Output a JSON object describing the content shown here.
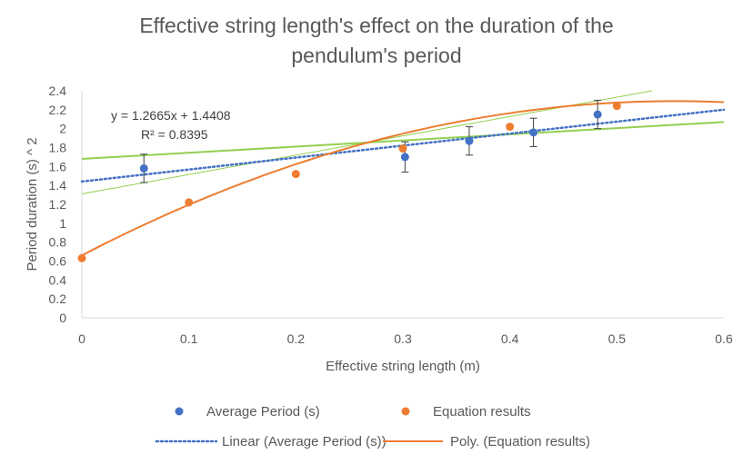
{
  "chart_data": {
    "type": "scatter",
    "title_lines": [
      "Effective string length's effect on the duration of the",
      "pendulum's period"
    ],
    "xlabel": "Effective string length (m)",
    "ylabel": "Period duration (s) ^ 2",
    "xlim": [
      0,
      0.6
    ],
    "ylim": [
      0,
      2.4
    ],
    "x_ticks": [
      "0",
      "0.1",
      "0.2",
      "0.3",
      "0.4",
      "0.5",
      "0.6"
    ],
    "y_ticks": [
      "0",
      "0.2",
      "0.4",
      "0.6",
      "0.8",
      "1",
      "1.2",
      "1.4",
      "1.6",
      "1.8",
      "2",
      "2.2",
      "2.4"
    ],
    "grid": false,
    "series": [
      {
        "name": "Average Period (s)",
        "color": "#4472C4",
        "x": [
          0.058,
          0.302,
          0.362,
          0.422,
          0.482
        ],
        "y": [
          1.58,
          1.7,
          1.87,
          1.96,
          2.15
        ],
        "error": [
          0.15,
          0.16,
          0.15,
          0.15,
          0.15
        ]
      },
      {
        "name": "Equation results",
        "color": "#ED7D31",
        "x": [
          0,
          0.1,
          0.2,
          0.3,
          0.4,
          0.5
        ],
        "y": [
          0.63,
          1.22,
          1.52,
          1.79,
          2.02,
          2.24
        ]
      }
    ],
    "trendlines": [
      {
        "name": "Linear (Average Period (s))",
        "color": "#4472C4",
        "style": "dotted",
        "slope": 1.2665,
        "intercept": 1.4408,
        "equation": "y = 1.2665x + 1.4408",
        "r2": "R² = 0.8395"
      },
      {
        "name": "Poly. (Equation results)",
        "color": "#ED7D31",
        "style": "solid",
        "coeffs": [
          0.66,
          5.88,
          -5.3
        ]
      }
    ],
    "extra_lines": [
      {
        "color": "#92D050",
        "width": 2,
        "x": [
          0,
          0.6
        ],
        "y": [
          1.68,
          2.07
        ]
      },
      {
        "color": "#92D050",
        "width": 1,
        "x": [
          0,
          0.533
        ],
        "y": [
          1.31,
          2.4
        ]
      }
    ],
    "legend": {
      "placement": "bottom",
      "entries": [
        "Average Period (s)",
        "Equation results",
        "Linear (Average Period (s))",
        "Poly. (Equation results)"
      ]
    }
  }
}
